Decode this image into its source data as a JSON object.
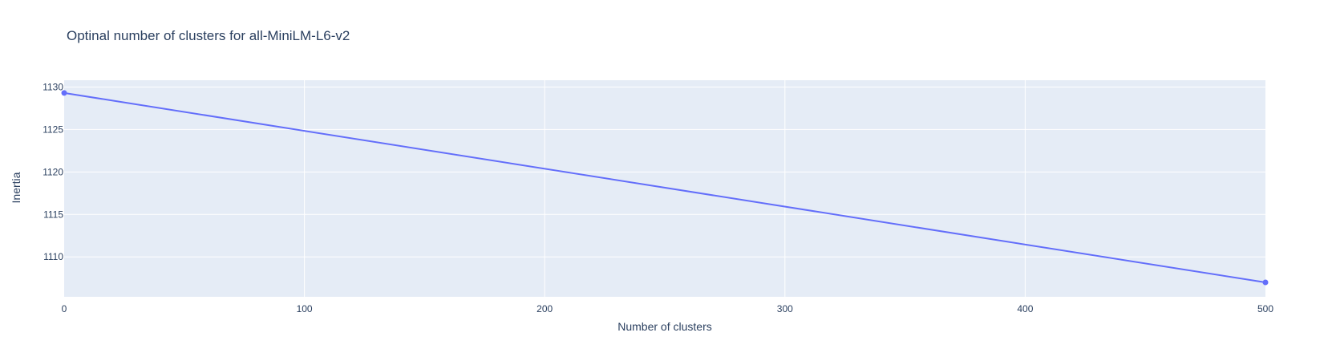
{
  "chart_data": {
    "type": "line",
    "title": "Optinal number of clusters for all-MiniLM-L6-v2",
    "xlabel": "Number of clusters",
    "ylabel": "Inertia",
    "x": [
      0,
      500
    ],
    "series": [
      {
        "name": "inertia",
        "values": [
          1129.3,
          1107.0
        ]
      }
    ],
    "xlim": [
      0,
      500
    ],
    "ylim": [
      1105.3,
      1130.8
    ],
    "xticks": [
      0,
      100,
      200,
      300,
      400,
      500
    ],
    "yticks": [
      1110,
      1115,
      1120,
      1125,
      1130
    ],
    "grid": true,
    "colors": {
      "plot_bg": "#e5ecf6",
      "grid": "#ffffff",
      "line": "#636efa",
      "text": "#2a3f5f"
    }
  }
}
